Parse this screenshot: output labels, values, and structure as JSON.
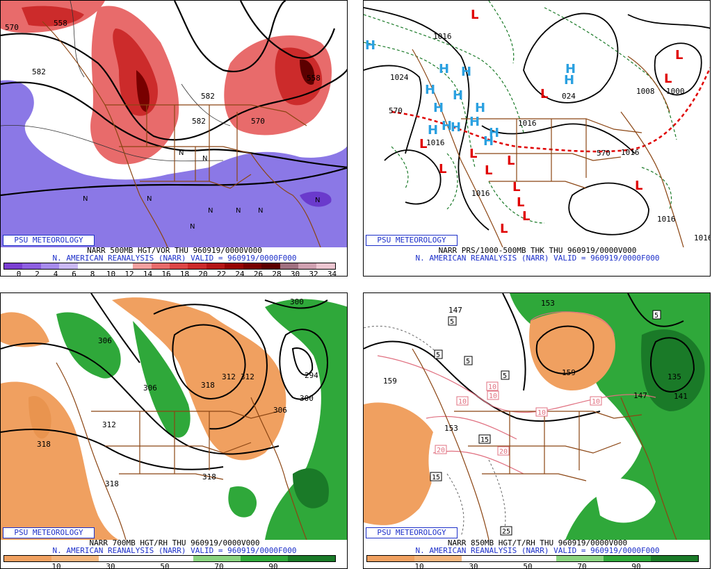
{
  "brand": "PSU METEOROLOGY",
  "reanalysis_line": "N. AMERICAN REANALYSIS (NARR) VALID = 960919/0000F000",
  "panels": [
    {
      "id": "vor500",
      "title": "NARR 500MB HGT/VOR THU 960919/0000V000",
      "contour_labels": [
        "570",
        "558",
        "582",
        "582",
        "582",
        "570",
        "558"
      ],
      "scale_ticks": [
        "0",
        "2",
        "4",
        "6",
        "8",
        "10",
        "12",
        "14",
        "16",
        "18",
        "20",
        "22",
        "24",
        "26",
        "28",
        "30",
        "32",
        "34"
      ]
    },
    {
      "id": "thk",
      "title": "NARR PRS/1000-500MB THK THU 960919/0000V000",
      "contour_labels": [
        "1016",
        "1024",
        "1016",
        "1016",
        "1016",
        "1016",
        "1016",
        "1016",
        "024",
        "1000",
        "1008",
        "570",
        "570"
      ],
      "high_label": "H",
      "low_label": "L"
    },
    {
      "id": "rh700",
      "title": "NARR 700MB HGT/RH THU 960919/0000V000",
      "contour_labels": [
        "300",
        "306",
        "306",
        "312",
        "318",
        "318",
        "312",
        "318",
        "312",
        "306",
        "300",
        "294",
        "300",
        "318"
      ],
      "scale_ticks": [
        "10",
        "30",
        "50",
        "70",
        "90"
      ]
    },
    {
      "id": "t850",
      "title": "NARR 850MB HGT/T/RH THU 960919/0000V000",
      "contour_labels": [
        "153",
        "147",
        "159",
        "153",
        "159",
        "135",
        "141",
        "147",
        "153"
      ],
      "box_labels": [
        "5",
        "5",
        "5",
        "5",
        "5",
        "10",
        "10",
        "10",
        "10",
        "10",
        "15",
        "15",
        "20",
        "20",
        "25"
      ],
      "scale_ticks": [
        "10",
        "30",
        "50",
        "70",
        "90"
      ]
    }
  ],
  "colors": {
    "vor_scale": [
      "#7a3ed1",
      "#8d5ee0",
      "#a68aed",
      "#cbb9f5",
      "#ffffff",
      "#ffffff",
      "#ffffff",
      "#f3a0a0",
      "#e86b6b",
      "#dc4646",
      "#cc2b2b",
      "#b41616",
      "#960404",
      "#780000",
      "#5c0000",
      "#a07080",
      "#cfa0b0",
      "#ecc5d0"
    ],
    "rh_scale": [
      "#f0a060",
      "#f4b67e",
      "#ffffff",
      "#ffffff",
      "#8ad480",
      "#2fa83a",
      "#1a7a28"
    ],
    "border": "#8b4513"
  }
}
